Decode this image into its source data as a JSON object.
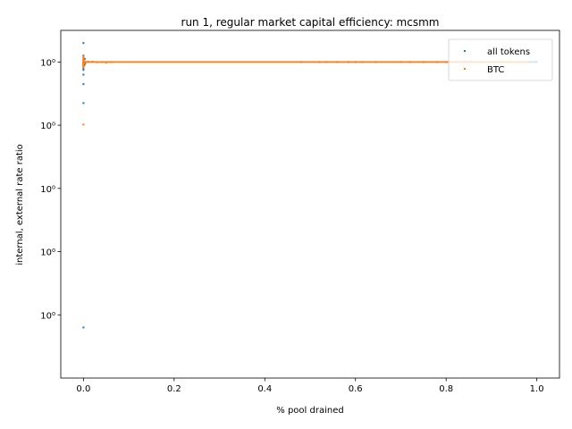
{
  "chart_data": {
    "type": "scatter",
    "title": "run 1, regular market capital efficiency: mcsmm",
    "xlabel": "% pool drained",
    "ylabel": "internal, external rate ratio",
    "xlim": [
      -0.05,
      1.05
    ],
    "ylim": [
      0.9994,
      1.0005
    ],
    "x_ticks": [
      0.0,
      0.2,
      0.4,
      0.6,
      0.8,
      1.0
    ],
    "x_tick_labels": [
      "0.0",
      "0.2",
      "0.4",
      "0.6",
      "0.8",
      "1.0"
    ],
    "y_ticks": [
      1.0004,
      1.0002,
      1.0,
      0.9998,
      0.9996
    ],
    "y_tick_labels": [
      "10⁰",
      "10⁰",
      "10⁰",
      "10⁰",
      "10⁰"
    ],
    "legend": {
      "placement": "top-right"
    },
    "grid": false,
    "series": [
      {
        "name": "all tokens",
        "color": "#1f77b4",
        "points": [
          [
            0.0,
            1.00046
          ],
          [
            0.0,
            1.00042
          ],
          [
            0.0,
            1.000395
          ],
          [
            0.0,
            1.00039
          ],
          [
            0.0,
            1.000385
          ],
          [
            0.0,
            1.00038
          ],
          [
            0.0,
            1.000375
          ],
          [
            0.0,
            1.00036
          ],
          [
            0.0,
            1.00033
          ],
          [
            0.0,
            1.00027
          ],
          [
            0.0,
            0.99956
          ],
          [
            0.002,
            1.00039
          ],
          [
            0.003,
            1.00041
          ],
          [
            0.004,
            1.000395
          ],
          [
            0.48,
            1.0004
          ],
          [
            0.52,
            1.0004
          ],
          [
            0.535,
            1.0004
          ],
          [
            0.56,
            1.0004
          ],
          [
            0.585,
            1.0004
          ],
          [
            0.6,
            1.0004
          ],
          [
            0.615,
            1.0004
          ],
          [
            0.645,
            1.0004
          ],
          [
            0.7,
            1.0004
          ],
          [
            0.72,
            1.0004
          ],
          [
            0.75,
            1.0004
          ],
          [
            0.78,
            1.0004
          ],
          [
            0.8,
            1.0004
          ],
          [
            0.82,
            1.0004
          ],
          [
            0.84,
            1.0004
          ],
          [
            0.855,
            1.0004
          ],
          [
            0.87,
            1.0004
          ],
          [
            0.88,
            1.0004
          ],
          [
            0.9,
            1.0004
          ],
          [
            0.915,
            1.0004
          ],
          [
            0.925,
            1.0004
          ],
          [
            0.94,
            1.0004
          ],
          [
            0.955,
            1.0004
          ],
          [
            0.965,
            1.0004
          ],
          [
            0.975,
            1.0004
          ],
          [
            0.985,
            1.0004
          ],
          [
            0.995,
            1.0004
          ],
          [
            1.0,
            1.0004
          ]
        ]
      },
      {
        "name": "BTC",
        "color": "#ff7f0e",
        "points": [
          [
            0.0,
            1.000405
          ],
          [
            0.0,
            1.0004
          ],
          [
            0.0,
            1.000395
          ],
          [
            0.0,
            1.00039
          ],
          [
            0.0,
            1.000385
          ],
          [
            0.0,
            1.000395
          ],
          [
            0.0,
            1.00041
          ],
          [
            0.0,
            1.000402
          ],
          [
            0.0,
            1.000398
          ],
          [
            0.0,
            1.000202
          ],
          [
            0.001,
            1.000399
          ],
          [
            0.002,
            1.000403
          ],
          [
            0.003,
            1.000397
          ],
          [
            0.005,
            1.0004
          ],
          [
            0.01,
            1.000401
          ],
          [
            0.02,
            1.000401
          ],
          [
            0.03,
            1.000399
          ],
          [
            0.04,
            1.0004
          ],
          [
            0.05,
            1.000398
          ],
          [
            0.06,
            1.0004
          ]
        ]
      }
    ]
  }
}
